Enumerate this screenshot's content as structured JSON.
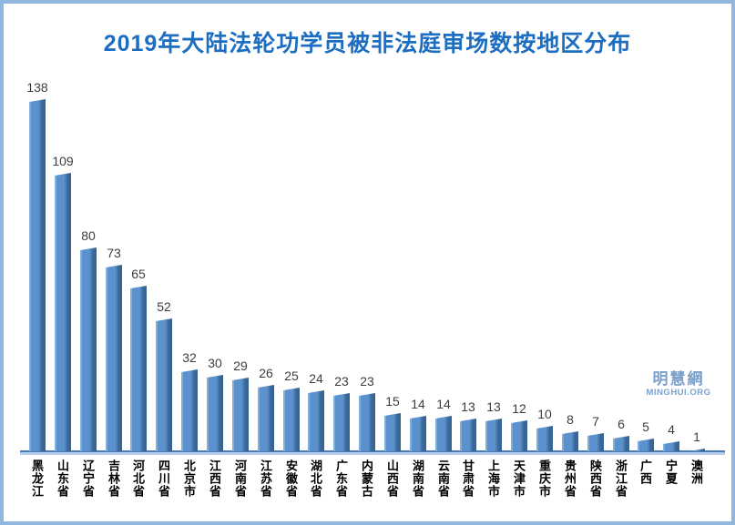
{
  "page": {
    "border_color": "#8fb6dc",
    "background_color": "#ffffff"
  },
  "title": {
    "text": "2019年大陆法轮功学员被非法庭审场数按地区分布",
    "color": "#1d6dc1"
  },
  "watermark": {
    "line1": "明慧網",
    "line2": "MINGHUI.ORG",
    "color": "#7b9fcb"
  },
  "chart_data": {
    "type": "bar",
    "title": "2019年大陆法轮功学员被非法庭审场数按地区分布",
    "categories": [
      "黑龙江",
      "山东省",
      "辽宁省",
      "吉林省",
      "河北省",
      "四川省",
      "北京市",
      "江西省",
      "河南省",
      "江苏省",
      "安徽省",
      "湖北省",
      "广东省",
      "内蒙古",
      "山西省",
      "湖南省",
      "云南省",
      "甘肃省",
      "上海市",
      "天津市",
      "重庆市",
      "贵州省",
      "陕西省",
      "浙江省",
      "广西",
      "宁夏",
      "澳洲"
    ],
    "values": [
      138,
      109,
      80,
      73,
      65,
      52,
      32,
      30,
      29,
      26,
      25,
      24,
      23,
      23,
      15,
      14,
      14,
      13,
      13,
      12,
      10,
      8,
      7,
      6,
      5,
      4,
      1
    ],
    "xlabel": "",
    "ylabel": "",
    "ylim": [
      0,
      145
    ],
    "grid": false,
    "legend_position": "none",
    "value_labels_shown": true,
    "bar_face_color": "#5b92cd",
    "bar_side_color": "#3a689b",
    "value_label_color": "#3d3d3d",
    "axis_line_color": "#4a7cba",
    "axis_shadow_color": "#b3cce9"
  }
}
